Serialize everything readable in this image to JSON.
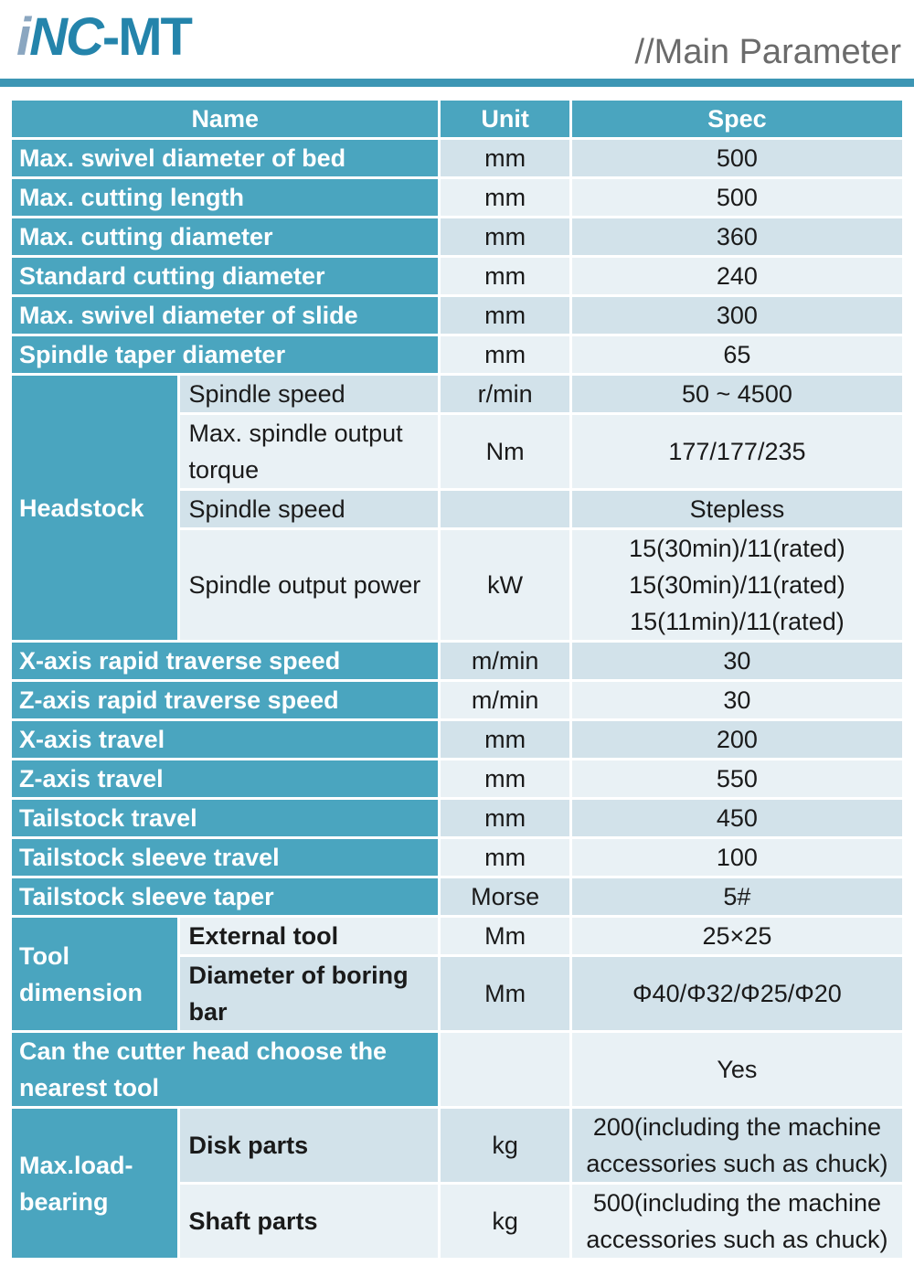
{
  "header": {
    "logo_i": "i",
    "logo_nc": "NC",
    "logo_mt": "-MT",
    "title": "//Main Parameter"
  },
  "colors": {
    "teal": "#4aa5bf",
    "row_dark": "#d2e2ea",
    "row_light": "#e9f1f5",
    "rule": "#3d96b4",
    "title_gray": "#6b6b6b",
    "logo_blue": "#2484ab",
    "logo_i_blue": "#8aa6c0"
  },
  "table": {
    "columns": [
      "Name",
      "Unit",
      "Spec"
    ],
    "rows": [
      {
        "type": "simple",
        "name": "Max. swivel diameter of bed",
        "unit": "mm",
        "spec": "500"
      },
      {
        "type": "simple",
        "name": "Max. cutting length",
        "unit": "mm",
        "spec": "500"
      },
      {
        "type": "simple",
        "name": "Max. cutting diameter",
        "unit": "mm",
        "spec": "360"
      },
      {
        "type": "simple",
        "name": "Standard cutting diameter",
        "unit": "mm",
        "spec": "240"
      },
      {
        "type": "simple",
        "name": "Max. swivel diameter of slide",
        "unit": "mm",
        "spec": "300"
      },
      {
        "type": "simple",
        "name": "Spindle taper diameter",
        "unit": "mm",
        "spec": "65"
      },
      {
        "type": "group",
        "group": "Headstock",
        "bold_sub": false,
        "sub": [
          {
            "name": "Spindle speed",
            "unit": "r/min",
            "spec": "50 ~ 4500"
          },
          {
            "name": "Max. spindle output torque",
            "unit": "Nm",
            "spec": "177/177/235"
          },
          {
            "name": "Spindle speed",
            "unit": "",
            "spec": "Stepless"
          },
          {
            "name": "Spindle output power",
            "unit": "kW",
            "spec_lines": [
              "15(30min)/11(rated)",
              "15(30min)/11(rated)",
              "15(11min)/11(rated)"
            ]
          }
        ]
      },
      {
        "type": "simple",
        "name": "X-axis rapid traverse speed",
        "unit": "m/min",
        "spec": "30"
      },
      {
        "type": "simple",
        "name": "Z-axis rapid traverse speed",
        "unit": "m/min",
        "spec": "30"
      },
      {
        "type": "simple",
        "name": "X-axis travel",
        "unit": "mm",
        "spec": "200"
      },
      {
        "type": "simple",
        "name": "Z-axis travel",
        "unit": "mm",
        "spec": "550"
      },
      {
        "type": "simple",
        "name": "Tailstock travel",
        "unit": "mm",
        "spec": "450"
      },
      {
        "type": "simple",
        "name": "Tailstock sleeve travel",
        "unit": "mm",
        "spec": "100"
      },
      {
        "type": "simple",
        "name": "Tailstock sleeve taper",
        "unit": "Morse",
        "spec": "5#"
      },
      {
        "type": "group",
        "group": "Tool dimension",
        "bold_sub": true,
        "sub": [
          {
            "name": "External tool",
            "unit": "Mm",
            "spec": "25×25"
          },
          {
            "name": "Diameter of boring bar",
            "unit": "Mm",
            "spec": "Φ40/Φ32/Φ25/Φ20"
          }
        ]
      },
      {
        "type": "simple",
        "name": "Can the cutter head choose the nearest tool",
        "unit": "",
        "spec": "Yes"
      },
      {
        "type": "group",
        "group": "Max.load-bearing",
        "bold_sub": true,
        "sub": [
          {
            "name": "Disk parts",
            "unit": "kg",
            "spec": "200(including the machine accessories such as chuck)"
          },
          {
            "name": "Shaft parts",
            "unit": "kg",
            "spec": "500(including the machine accessories such as chuck)"
          }
        ]
      }
    ]
  }
}
